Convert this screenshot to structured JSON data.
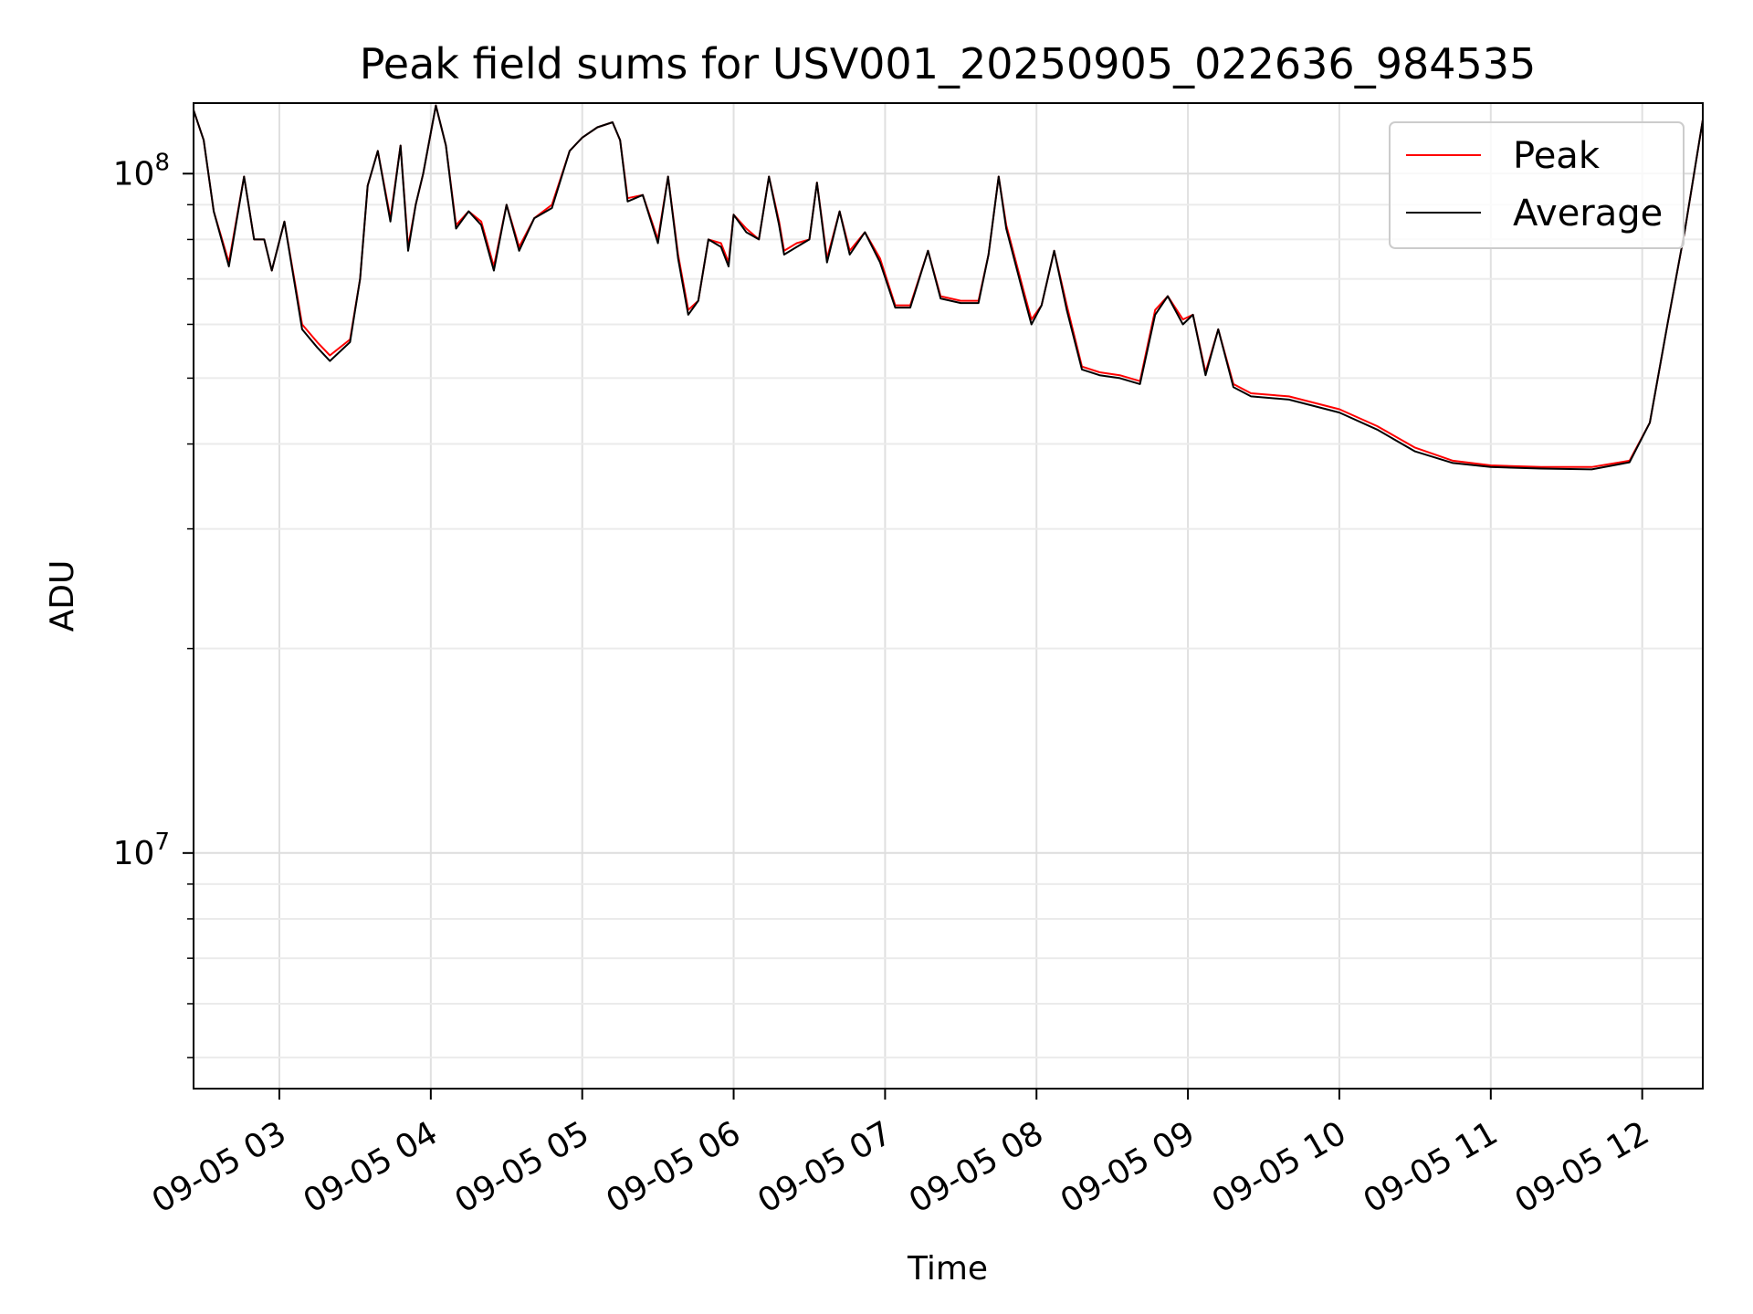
{
  "chart_data": {
    "type": "line",
    "title": "Peak field sums for USV001_20250905_022636_984535",
    "xlabel": "Time",
    "ylabel": "ADU",
    "yscale": "log",
    "ylim": [
      4500000.0,
      127000000.0
    ],
    "xlim": [
      "2025-09-05 02:26",
      "2025-09-05 12:24"
    ],
    "grid": "on (major and minor)",
    "legend_position": "top-right",
    "x_ticks": [
      {
        "t": "2025-09-05 03:00",
        "label": "09-05 03"
      },
      {
        "t": "2025-09-05 04:00",
        "label": "09-05 04"
      },
      {
        "t": "2025-09-05 05:00",
        "label": "09-05 05"
      },
      {
        "t": "2025-09-05 06:00",
        "label": "09-05 06"
      },
      {
        "t": "2025-09-05 07:00",
        "label": "09-05 07"
      },
      {
        "t": "2025-09-05 08:00",
        "label": "09-05 08"
      },
      {
        "t": "2025-09-05 09:00",
        "label": "09-05 09"
      },
      {
        "t": "2025-09-05 10:00",
        "label": "09-05 10"
      },
      {
        "t": "2025-09-05 11:00",
        "label": "09-05 11"
      },
      {
        "t": "2025-09-05 12:00",
        "label": "09-05 12"
      }
    ],
    "y_major_ticks": [
      {
        "value": 10000000.0,
        "base": "10",
        "exp": "7"
      },
      {
        "value": 100000000.0,
        "base": "10",
        "exp": "8"
      }
    ],
    "y_minor_ticks": [
      5000000.0,
      6000000.0,
      7000000.0,
      8000000.0,
      9000000.0,
      20000000.0,
      30000000.0,
      40000000.0,
      50000000.0,
      60000000.0,
      70000000.0,
      80000000.0,
      90000000.0
    ],
    "series": [
      {
        "name": "Peak",
        "color": "#ff0000",
        "points": [
          [
            "2025-09-05 02:26",
            124000000.0
          ],
          [
            "2025-09-05 02:30",
            112000000.0
          ],
          [
            "2025-09-05 02:34",
            88000000.0
          ],
          [
            "2025-09-05 02:40",
            74000000.0
          ],
          [
            "2025-09-05 02:46",
            99000000.0
          ],
          [
            "2025-09-05 02:50",
            80000000.0
          ],
          [
            "2025-09-05 02:54",
            80000000.0
          ],
          [
            "2025-09-05 02:57",
            72000000.0
          ],
          [
            "2025-09-05 03:02",
            85000000.0
          ],
          [
            "2025-09-05 03:09",
            60000000.0
          ],
          [
            "2025-09-05 03:15",
            56500000.0
          ],
          [
            "2025-09-05 03:20",
            54000000.0
          ],
          [
            "2025-09-05 03:28",
            57000000.0
          ],
          [
            "2025-09-05 03:32",
            70000000.0
          ],
          [
            "2025-09-05 03:35",
            96000000.0
          ],
          [
            "2025-09-05 03:39",
            108000000.0
          ],
          [
            "2025-09-05 03:44",
            86000000.0
          ],
          [
            "2025-09-05 03:48",
            110000000.0
          ],
          [
            "2025-09-05 03:51",
            78000000.0
          ],
          [
            "2025-09-05 03:54",
            90000000.0
          ],
          [
            "2025-09-05 03:57",
            100000000.0
          ],
          [
            "2025-09-05 04:02",
            126000000.0
          ],
          [
            "2025-09-05 04:06",
            110000000.0
          ],
          [
            "2025-09-05 04:10",
            84000000.0
          ],
          [
            "2025-09-05 04:15",
            88000000.0
          ],
          [
            "2025-09-05 04:20",
            85000000.0
          ],
          [
            "2025-09-05 04:25",
            73000000.0
          ],
          [
            "2025-09-05 04:30",
            90000000.0
          ],
          [
            "2025-09-05 04:35",
            78000000.0
          ],
          [
            "2025-09-05 04:41",
            86000000.0
          ],
          [
            "2025-09-05 04:48",
            90000000.0
          ],
          [
            "2025-09-05 04:55",
            108000000.0
          ],
          [
            "2025-09-05 05:00",
            113000000.0
          ],
          [
            "2025-09-05 05:06",
            117000000.0
          ],
          [
            "2025-09-05 05:12",
            119000000.0
          ],
          [
            "2025-09-05 05:15",
            112000000.0
          ],
          [
            "2025-09-05 05:18",
            92000000.0
          ],
          [
            "2025-09-05 05:24",
            93000000.0
          ],
          [
            "2025-09-05 05:30",
            80000000.0
          ],
          [
            "2025-09-05 05:34",
            99000000.0
          ],
          [
            "2025-09-05 05:38",
            76000000.0
          ],
          [
            "2025-09-05 05:42",
            63000000.0
          ],
          [
            "2025-09-05 05:46",
            65000000.0
          ],
          [
            "2025-09-05 05:50",
            80000000.0
          ],
          [
            "2025-09-05 05:55",
            79000000.0
          ],
          [
            "2025-09-05 05:58",
            74000000.0
          ],
          [
            "2025-09-05 06:00",
            87000000.0
          ],
          [
            "2025-09-05 06:05",
            83000000.0
          ],
          [
            "2025-09-05 06:10",
            80000000.0
          ],
          [
            "2025-09-05 06:14",
            99000000.0
          ],
          [
            "2025-09-05 06:18",
            85000000.0
          ],
          [
            "2025-09-05 06:20",
            77000000.0
          ],
          [
            "2025-09-05 06:25",
            79000000.0
          ],
          [
            "2025-09-05 06:30",
            80000000.0
          ],
          [
            "2025-09-05 06:33",
            97000000.0
          ],
          [
            "2025-09-05 06:37",
            75000000.0
          ],
          [
            "2025-09-05 06:42",
            88000000.0
          ],
          [
            "2025-09-05 06:46",
            77000000.0
          ],
          [
            "2025-09-05 06:52",
            82000000.0
          ],
          [
            "2025-09-05 06:58",
            75000000.0
          ],
          [
            "2025-09-05 07:04",
            64000000.0
          ],
          [
            "2025-09-05 07:10",
            64000000.0
          ],
          [
            "2025-09-05 07:17",
            77000000.0
          ],
          [
            "2025-09-05 07:22",
            66000000.0
          ],
          [
            "2025-09-05 07:30",
            65000000.0
          ],
          [
            "2025-09-05 07:37",
            65000000.0
          ],
          [
            "2025-09-05 07:41",
            76000000.0
          ],
          [
            "2025-09-05 07:45",
            99000000.0
          ],
          [
            "2025-09-05 07:48",
            84000000.0
          ],
          [
            "2025-09-05 07:55",
            67000000.0
          ],
          [
            "2025-09-05 07:58",
            61000000.0
          ],
          [
            "2025-09-05 08:02",
            64000000.0
          ],
          [
            "2025-09-05 08:07",
            77000000.0
          ],
          [
            "2025-09-05 08:12",
            64000000.0
          ],
          [
            "2025-09-05 08:18",
            52000000.0
          ],
          [
            "2025-09-05 08:25",
            51000000.0
          ],
          [
            "2025-09-05 08:33",
            50500000.0
          ],
          [
            "2025-09-05 08:41",
            49500000.0
          ],
          [
            "2025-09-05 08:47",
            63000000.0
          ],
          [
            "2025-09-05 08:52",
            66000000.0
          ],
          [
            "2025-09-05 08:58",
            61000000.0
          ],
          [
            "2025-09-05 09:02",
            62000000.0
          ],
          [
            "2025-09-05 09:07",
            51000000.0
          ],
          [
            "2025-09-05 09:12",
            59000000.0
          ],
          [
            "2025-09-05 09:18",
            49000000.0
          ],
          [
            "2025-09-05 09:25",
            47500000.0
          ],
          [
            "2025-09-05 09:40",
            47000000.0
          ],
          [
            "2025-09-05 10:00",
            45000000.0
          ],
          [
            "2025-09-05 10:15",
            42500000.0
          ],
          [
            "2025-09-05 10:30",
            39500000.0
          ],
          [
            "2025-09-05 10:45",
            37800000.0
          ],
          [
            "2025-09-05 11:00",
            37200000.0
          ],
          [
            "2025-09-05 11:20",
            37000000.0
          ],
          [
            "2025-09-05 11:40",
            37000000.0
          ],
          [
            "2025-09-05 11:55",
            37800000.0
          ],
          [
            "2025-09-05 12:03",
            43000000.0
          ],
          [
            "2025-09-05 12:10",
            60000000.0
          ],
          [
            "2025-09-05 12:17",
            83000000.0
          ],
          [
            "2025-09-05 12:24",
            120000000.0
          ]
        ]
      },
      {
        "name": "Average",
        "color": "#000000",
        "points": [
          [
            "2025-09-05 02:26",
            124000000.0
          ],
          [
            "2025-09-05 02:30",
            112000000.0
          ],
          [
            "2025-09-05 02:34",
            88000000.0
          ],
          [
            "2025-09-05 02:40",
            73000000.0
          ],
          [
            "2025-09-05 02:46",
            99000000.0
          ],
          [
            "2025-09-05 02:50",
            80000000.0
          ],
          [
            "2025-09-05 02:54",
            80000000.0
          ],
          [
            "2025-09-05 02:57",
            72000000.0
          ],
          [
            "2025-09-05 03:02",
            85000000.0
          ],
          [
            "2025-09-05 03:09",
            59000000.0
          ],
          [
            "2025-09-05 03:15",
            55500000.0
          ],
          [
            "2025-09-05 03:20",
            53000000.0
          ],
          [
            "2025-09-05 03:28",
            56500000.0
          ],
          [
            "2025-09-05 03:32",
            70000000.0
          ],
          [
            "2025-09-05 03:35",
            96000000.0
          ],
          [
            "2025-09-05 03:39",
            108000000.0
          ],
          [
            "2025-09-05 03:44",
            85000000.0
          ],
          [
            "2025-09-05 03:48",
            110000000.0
          ],
          [
            "2025-09-05 03:51",
            77000000.0
          ],
          [
            "2025-09-05 03:54",
            90000000.0
          ],
          [
            "2025-09-05 03:57",
            100000000.0
          ],
          [
            "2025-09-05 04:02",
            126000000.0
          ],
          [
            "2025-09-05 04:06",
            110000000.0
          ],
          [
            "2025-09-05 04:10",
            83000000.0
          ],
          [
            "2025-09-05 04:15",
            88000000.0
          ],
          [
            "2025-09-05 04:20",
            84000000.0
          ],
          [
            "2025-09-05 04:25",
            72000000.0
          ],
          [
            "2025-09-05 04:30",
            90000000.0
          ],
          [
            "2025-09-05 04:35",
            77000000.0
          ],
          [
            "2025-09-05 04:41",
            86000000.0
          ],
          [
            "2025-09-05 04:48",
            89000000.0
          ],
          [
            "2025-09-05 04:55",
            108000000.0
          ],
          [
            "2025-09-05 05:00",
            113000000.0
          ],
          [
            "2025-09-05 05:06",
            117000000.0
          ],
          [
            "2025-09-05 05:12",
            119000000.0
          ],
          [
            "2025-09-05 05:15",
            112000000.0
          ],
          [
            "2025-09-05 05:18",
            91000000.0
          ],
          [
            "2025-09-05 05:24",
            93000000.0
          ],
          [
            "2025-09-05 05:30",
            79000000.0
          ],
          [
            "2025-09-05 05:34",
            99000000.0
          ],
          [
            "2025-09-05 05:38",
            75000000.0
          ],
          [
            "2025-09-05 05:42",
            62000000.0
          ],
          [
            "2025-09-05 05:46",
            65000000.0
          ],
          [
            "2025-09-05 05:50",
            80000000.0
          ],
          [
            "2025-09-05 05:55",
            78000000.0
          ],
          [
            "2025-09-05 05:58",
            73000000.0
          ],
          [
            "2025-09-05 06:00",
            87000000.0
          ],
          [
            "2025-09-05 06:05",
            82000000.0
          ],
          [
            "2025-09-05 06:10",
            80000000.0
          ],
          [
            "2025-09-05 06:14",
            99000000.0
          ],
          [
            "2025-09-05 06:18",
            84000000.0
          ],
          [
            "2025-09-05 06:20",
            76000000.0
          ],
          [
            "2025-09-05 06:25",
            78000000.0
          ],
          [
            "2025-09-05 06:30",
            80000000.0
          ],
          [
            "2025-09-05 06:33",
            97000000.0
          ],
          [
            "2025-09-05 06:37",
            74000000.0
          ],
          [
            "2025-09-05 06:42",
            88000000.0
          ],
          [
            "2025-09-05 06:46",
            76000000.0
          ],
          [
            "2025-09-05 06:52",
            82000000.0
          ],
          [
            "2025-09-05 06:58",
            74000000.0
          ],
          [
            "2025-09-05 07:04",
            63500000.0
          ],
          [
            "2025-09-05 07:10",
            63500000.0
          ],
          [
            "2025-09-05 07:17",
            77000000.0
          ],
          [
            "2025-09-05 07:22",
            65500000.0
          ],
          [
            "2025-09-05 07:30",
            64500000.0
          ],
          [
            "2025-09-05 07:37",
            64500000.0
          ],
          [
            "2025-09-05 07:41",
            76000000.0
          ],
          [
            "2025-09-05 07:45",
            99000000.0
          ],
          [
            "2025-09-05 07:48",
            83000000.0
          ],
          [
            "2025-09-05 07:55",
            66000000.0
          ],
          [
            "2025-09-05 07:58",
            60000000.0
          ],
          [
            "2025-09-05 08:02",
            64000000.0
          ],
          [
            "2025-09-05 08:07",
            77000000.0
          ],
          [
            "2025-09-05 08:12",
            63000000.0
          ],
          [
            "2025-09-05 08:18",
            51500000.0
          ],
          [
            "2025-09-05 08:25",
            50500000.0
          ],
          [
            "2025-09-05 08:33",
            50000000.0
          ],
          [
            "2025-09-05 08:41",
            49000000.0
          ],
          [
            "2025-09-05 08:47",
            62000000.0
          ],
          [
            "2025-09-05 08:52",
            66000000.0
          ],
          [
            "2025-09-05 08:58",
            60000000.0
          ],
          [
            "2025-09-05 09:02",
            62000000.0
          ],
          [
            "2025-09-05 09:07",
            50500000.0
          ],
          [
            "2025-09-05 09:12",
            59000000.0
          ],
          [
            "2025-09-05 09:18",
            48500000.0
          ],
          [
            "2025-09-05 09:25",
            47000000.0
          ],
          [
            "2025-09-05 09:40",
            46500000.0
          ],
          [
            "2025-09-05 10:00",
            44500000.0
          ],
          [
            "2025-09-05 10:15",
            42000000.0
          ],
          [
            "2025-09-05 10:30",
            39000000.0
          ],
          [
            "2025-09-05 10:45",
            37500000.0
          ],
          [
            "2025-09-05 11:00",
            37000000.0
          ],
          [
            "2025-09-05 11:20",
            36800000.0
          ],
          [
            "2025-09-05 11:40",
            36700000.0
          ],
          [
            "2025-09-05 11:55",
            37600000.0
          ],
          [
            "2025-09-05 12:03",
            43000000.0
          ],
          [
            "2025-09-05 12:10",
            60000000.0
          ],
          [
            "2025-09-05 12:17",
            83000000.0
          ],
          [
            "2025-09-05 12:24",
            120000000.0
          ]
        ]
      }
    ]
  }
}
